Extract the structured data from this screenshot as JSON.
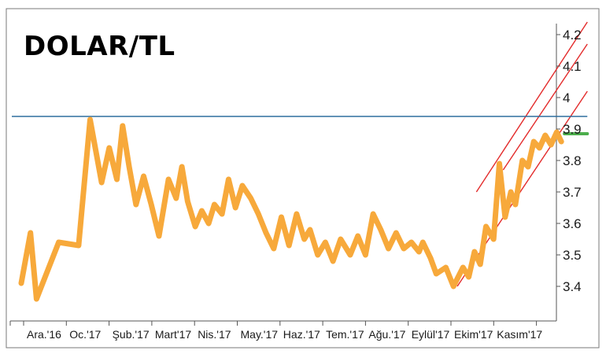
{
  "chart_data": {
    "type": "line",
    "title": "DOLAR/TL",
    "xlabel": "",
    "ylabel": "",
    "x_ticks": [
      "Ara.'16",
      "Oc.'17",
      "Şub.'17",
      "Mart'17",
      "Nis.'17",
      "May.'17",
      "Haz.'17",
      "Tem.'17",
      "Ağu.'17",
      "Eylül'17",
      "Ekim'17",
      "Kasım'17"
    ],
    "y_ticks": [
      3.4,
      3.5,
      3.6,
      3.7,
      3.8,
      3.9,
      4.0,
      4.1,
      4.2
    ],
    "y_tick_labels": [
      "3.4",
      "3.5",
      "3.6",
      "3.7",
      "3.8",
      "3.9",
      "4",
      "4.1",
      "4.2"
    ],
    "ylim": [
      3.3,
      4.23
    ],
    "grid": false,
    "series": [
      {
        "color": "#f7a93b",
        "x": [
          0.0,
          0.24,
          0.4,
          0.98,
          1.5,
          1.8,
          2.1,
          2.3,
          2.5,
          2.65,
          2.82,
          3.0,
          3.2,
          3.4,
          3.6,
          3.85,
          4.05,
          4.2,
          4.35,
          4.55,
          4.72,
          4.9,
          5.05,
          5.25,
          5.42,
          5.6,
          5.78,
          6.0,
          6.2,
          6.4,
          6.6,
          6.8,
          7.0,
          7.2,
          7.4,
          7.55,
          7.75,
          7.95,
          8.15,
          8.35,
          8.6,
          8.8,
          9.0,
          9.2,
          9.4,
          9.6,
          9.8,
          10.0,
          10.2,
          10.4,
          10.5,
          10.7,
          10.85,
          11.1,
          11.3,
          11.55,
          11.7,
          11.85,
          12.0,
          12.15,
          12.35,
          12.5,
          12.65,
          12.8,
          12.92,
          13.1,
          13.25,
          13.4,
          13.55,
          13.7,
          13.85,
          14.0,
          14.12
        ],
        "values": [
          3.41,
          3.57,
          3.36,
          3.54,
          3.53,
          3.93,
          3.73,
          3.84,
          3.74,
          3.91,
          3.78,
          3.66,
          3.75,
          3.66,
          3.56,
          3.74,
          3.68,
          3.78,
          3.67,
          3.59,
          3.64,
          3.6,
          3.66,
          3.63,
          3.74,
          3.65,
          3.72,
          3.68,
          3.63,
          3.57,
          3.52,
          3.62,
          3.53,
          3.63,
          3.55,
          3.58,
          3.5,
          3.54,
          3.48,
          3.55,
          3.5,
          3.56,
          3.5,
          3.63,
          3.58,
          3.52,
          3.57,
          3.52,
          3.54,
          3.51,
          3.54,
          3.49,
          3.44,
          3.46,
          3.4,
          3.46,
          3.43,
          3.51,
          3.47,
          3.59,
          3.55,
          3.79,
          3.62,
          3.7,
          3.66,
          3.8,
          3.78,
          3.86,
          3.84,
          3.88,
          3.85,
          3.89,
          3.86
        ]
      },
      {
        "color": "#4cae4c",
        "x": [
          14.2,
          14.8
        ],
        "values": [
          3.885,
          3.885
        ]
      }
    ],
    "annotations": {
      "resistance_line": {
        "color": "#2e6e9e",
        "x": [
          0.0,
          14.8
        ],
        "values": [
          3.94,
          3.94
        ]
      },
      "channel_lines": {
        "color": "#e32b2b",
        "lines": [
          {
            "x": [
              11.4,
              14.8
            ],
            "values": [
              3.4,
              4.02
            ]
          },
          {
            "x": [
              12.6,
              14.8
            ],
            "values": [
              3.77,
              4.17
            ]
          },
          {
            "x": [
              11.9,
              14.8
            ],
            "values": [
              3.7,
              4.24
            ]
          }
        ]
      }
    }
  }
}
